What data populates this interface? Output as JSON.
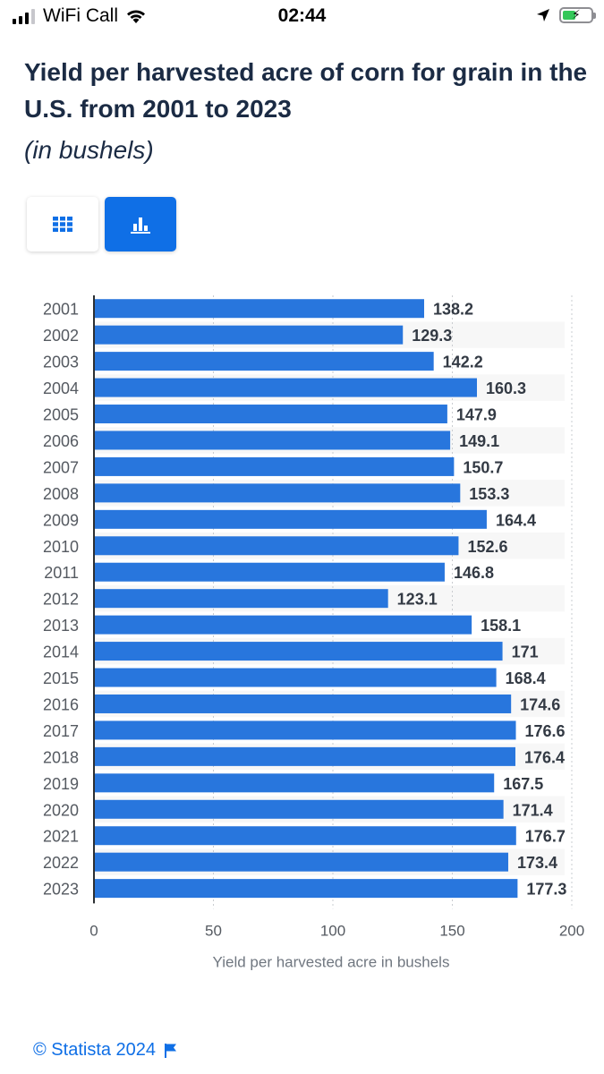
{
  "status_bar": {
    "carrier": "WiFi Call",
    "time": "02:44",
    "battery_color": "#34c759"
  },
  "title": "Yield per harvested acre of corn for grain in the U.S. from 2001 to 2023",
  "subtitle": "(in bushels)",
  "toggle": {
    "table_icon": "grid-icon",
    "chart_icon": "bar-chart-icon",
    "active": "chart",
    "active_color": "#0f6fe6"
  },
  "chart_data": {
    "type": "bar",
    "orientation": "horizontal",
    "categories": [
      "2001",
      "2002",
      "2003",
      "2004",
      "2005",
      "2006",
      "2007",
      "2008",
      "2009",
      "2010",
      "2011",
      "2012",
      "2013",
      "2014",
      "2015",
      "2016",
      "2017",
      "2018",
      "2019",
      "2020",
      "2021",
      "2022",
      "2023"
    ],
    "values": [
      138.2,
      129.3,
      142.2,
      160.3,
      147.9,
      149.1,
      150.7,
      153.3,
      164.4,
      152.6,
      146.8,
      123.1,
      158.1,
      171,
      168.4,
      174.6,
      176.6,
      176.4,
      167.5,
      171.4,
      176.7,
      173.4,
      177.3
    ],
    "value_labels": [
      "138.2",
      "129.3",
      "142.2",
      "160.3",
      "147.9",
      "149.1",
      "150.7",
      "153.3",
      "164.4",
      "152.6",
      "146.8",
      "123.1",
      "158.1",
      "171",
      "168.4",
      "174.6",
      "176.6",
      "176.4",
      "167.5",
      "171.4",
      "176.7",
      "173.4",
      "177.3"
    ],
    "xlabel": "Yield per harvested acre in bushels",
    "xlim": [
      0,
      200
    ],
    "xticks": [
      0,
      50,
      100,
      150,
      200
    ],
    "grid": true,
    "bar_color": "#2876dd"
  },
  "footer": {
    "copyright": "© Statista 2024",
    "flag_icon": "flag-icon"
  }
}
